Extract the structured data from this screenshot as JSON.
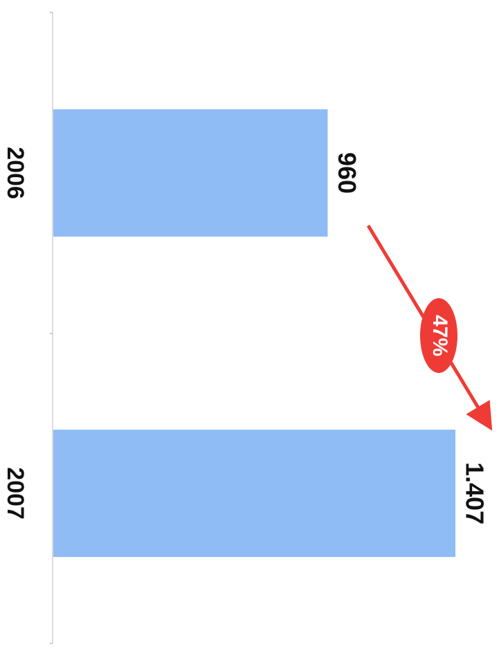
{
  "chart_data": {
    "type": "bar",
    "orientation": "horizontal",
    "categories": [
      "2006",
      "2007"
    ],
    "values": [
      960,
      1407
    ],
    "data_labels": [
      "960",
      "1.407"
    ],
    "title": "",
    "xlabel": "",
    "ylabel": "",
    "grid": false,
    "legend": "none",
    "annotation": {
      "text": "47%",
      "from_category": "2006",
      "to_category": "2007",
      "color": "#ef3b36"
    },
    "bar_color": "#8fbcf5"
  }
}
